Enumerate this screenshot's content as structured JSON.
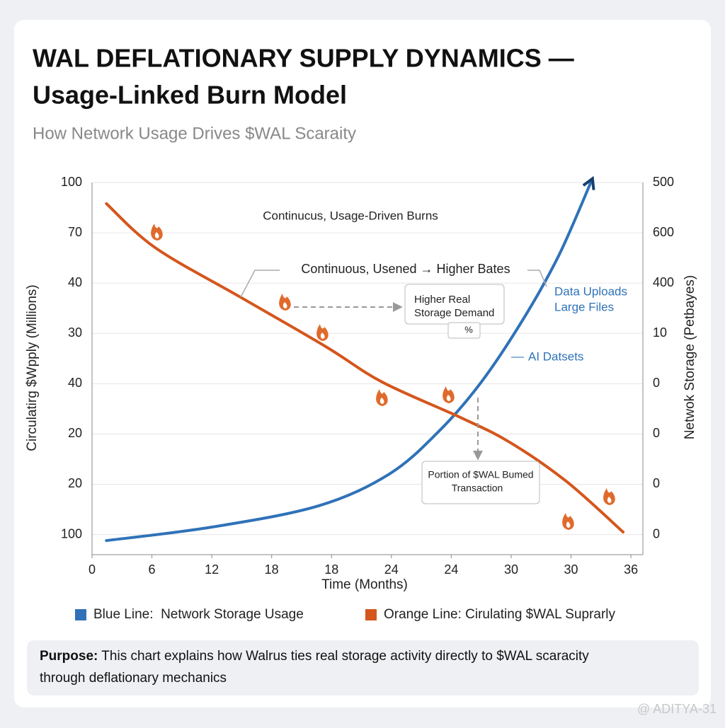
{
  "chart_data": {
    "type": "line",
    "title": [
      "WAL DEFLATIONARY SUPPLY DYNAMICS —",
      "Usage-Linked Burn Model"
    ],
    "subtitle": "How Network Usage Drives $WAL Scaraity",
    "xlabel": "Time (Months)",
    "ylabel": "Circulatirg $Wpply (Millions)",
    "y2label": "Netwok Storage (Petbayes)",
    "xlim": [
      0,
      9.2
    ],
    "xticks": [
      {
        "value": 0,
        "label": "0"
      },
      {
        "value": 1,
        "label": "6"
      },
      {
        "value": 2,
        "label": "12"
      },
      {
        "value": 3,
        "label": "18"
      },
      {
        "value": 4,
        "label": "18"
      },
      {
        "value": 5,
        "label": "24"
      },
      {
        "value": 6,
        "label": "24"
      },
      {
        "value": 7,
        "label": "30"
      },
      {
        "value": 8,
        "label": "30"
      },
      {
        "value": 9,
        "label": "36"
      }
    ],
    "ylim": [
      -0.4,
      7
    ],
    "yticks": [
      {
        "value": 7,
        "label": "100"
      },
      {
        "value": 6,
        "label": "70"
      },
      {
        "value": 5,
        "label": "40"
      },
      {
        "value": 4,
        "label": "30"
      },
      {
        "value": 3,
        "label": "40"
      },
      {
        "value": 2,
        "label": "20"
      },
      {
        "value": 1,
        "label": "20"
      },
      {
        "value": 0,
        "label": "100"
      }
    ],
    "y2lim": [
      -0.4,
      7
    ],
    "y2ticks": [
      {
        "value": 7,
        "label": "500"
      },
      {
        "value": 6,
        "label": "600"
      },
      {
        "value": 5,
        "label": "400"
      },
      {
        "value": 4,
        "label": "10"
      },
      {
        "value": 3,
        "label": "0"
      },
      {
        "value": 2,
        "label": "0"
      },
      {
        "value": 1,
        "label": "0"
      },
      {
        "value": 0,
        "label": "0"
      }
    ],
    "grid": true,
    "series": [
      {
        "name": "Blue Line:  Network Storage Usage",
        "color": "#2f72b8",
        "axis": "y2",
        "x": [
          0.24,
          2.01,
          3.78,
          4.96,
          5.79,
          6.5,
          7.21,
          7.8,
          8.33
        ],
        "values": [
          -0.12,
          0.15,
          0.57,
          1.2,
          2.05,
          3.03,
          4.3,
          5.56,
          7.0
        ]
      },
      {
        "name": "Orange Line: Cirulating $WAL Suprarly",
        "color": "#d4561c",
        "x": [
          0.24,
          1.06,
          2.48,
          3.9,
          4.85,
          6.15,
          6.97,
          7.92,
          8.87
        ],
        "values": [
          6.58,
          5.7,
          4.72,
          3.74,
          3.03,
          2.33,
          1.84,
          1.06,
          0.05
        ]
      }
    ],
    "annotations": [
      "Continucus, Usage-Driven Burns",
      "Continuous, Usened → Higher Bates",
      "Higher Real",
      "Storage Demand",
      "%",
      "Data Uploads",
      "Large Files",
      "AI Datsets",
      "Portion of $WAL Bumed",
      "Transaction"
    ],
    "purpose": {
      "label": "Purpose:",
      "text": " This chart explains how Walrus ties real storage activity directly to $WAL scaracity",
      "text2": "through deflationary mechanics"
    },
    "watermark": "@ ADITYA-31"
  }
}
